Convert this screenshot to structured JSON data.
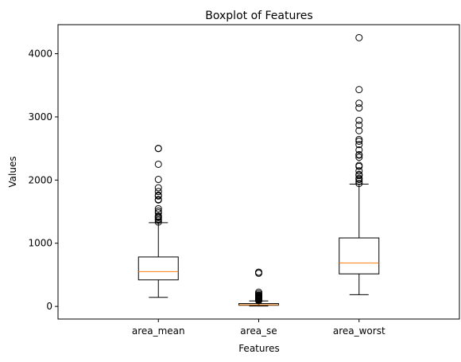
{
  "chart_data": {
    "type": "boxplot",
    "title": "Boxplot of Features",
    "xlabel": "Features",
    "ylabel": "Values",
    "ylim": [
      -200,
      4460
    ],
    "yticks": [
      0,
      1000,
      2000,
      3000,
      4000
    ],
    "grid": false,
    "colors": {
      "box": "#000000",
      "median": "#ff7f0e",
      "background": "#ffffff"
    },
    "categories": [
      "area_mean",
      "area_se",
      "area_worst"
    ],
    "boxes": [
      {
        "name": "area_mean",
        "whisker_low": 143,
        "q1": 420,
        "median": 551,
        "q3": 783,
        "whisker_high": 1326,
        "outliers": [
          1335,
          1364,
          1384,
          1407,
          1419,
          1430,
          1482,
          1509,
          1546,
          1685,
          1692,
          1747,
          1761,
          1819,
          1878,
          2010,
          2250,
          2499,
          2501
        ]
      },
      {
        "name": "area_se",
        "whisker_low": 7,
        "q1": 18,
        "median": 25,
        "q3": 45,
        "whisker_high": 87,
        "outliers": [
          90,
          100,
          110,
          120,
          130,
          140,
          150,
          160,
          170,
          180,
          200,
          225,
          525,
          542
        ]
      },
      {
        "name": "area_worst",
        "whisker_low": 185,
        "q1": 515,
        "median": 686,
        "q3": 1084,
        "whisker_high": 1937,
        "outliers": [
          1946,
          1980,
          2010,
          2027,
          2073,
          2089,
          2145,
          2215,
          2232,
          2360,
          2395,
          2403,
          2477,
          2562,
          2615,
          2642,
          2782,
          2870,
          2944,
          3143,
          3216,
          3432,
          4254
        ]
      }
    ]
  }
}
